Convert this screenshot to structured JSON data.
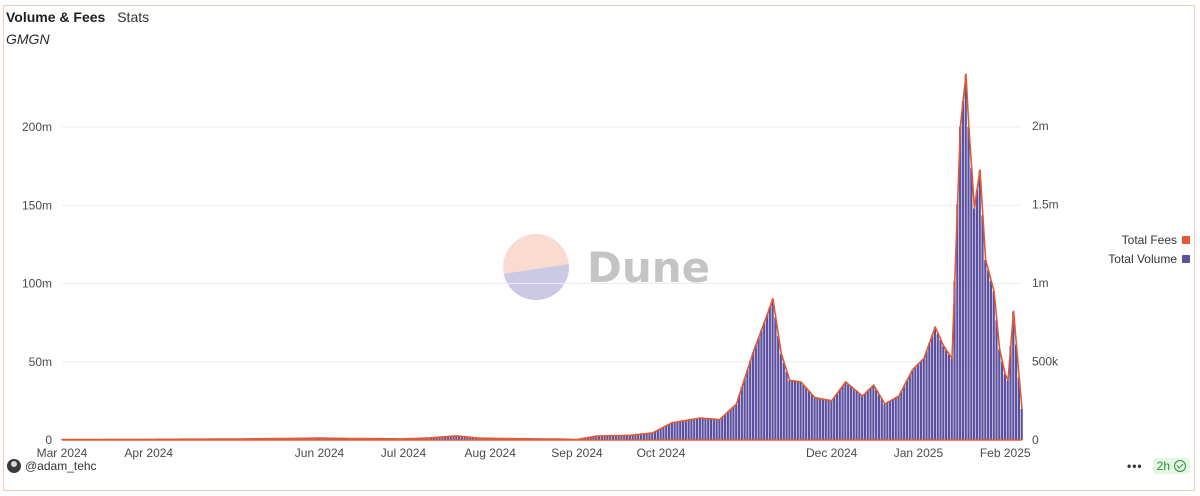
{
  "header": {
    "title": "Volume & Fees",
    "tab": "Stats",
    "subtitle": "GMGN"
  },
  "watermark": {
    "text": "Dune"
  },
  "legend": [
    {
      "label": "Total Fees",
      "color": "#e05a33"
    },
    {
      "label": "Total Volume",
      "color": "#5b4fa0"
    }
  ],
  "footer": {
    "author": "@adam_tehc",
    "menu": "•••",
    "refresh": "2h"
  },
  "chart_data": {
    "type": "bar",
    "start_date": "2024-03-01",
    "end_date": "2025-02-07",
    "x_ticks": [
      "Mar 2024",
      "Apr 2024",
      "Jun 2024",
      "Jul 2024",
      "Aug 2024",
      "Sep 2024",
      "Oct 2024",
      "Dec 2024",
      "Jan 2025",
      "Feb 2025"
    ],
    "y_left": {
      "ticks": [
        "0",
        "50m",
        "100m",
        "150m",
        "200m"
      ],
      "max": 200
    },
    "y_right": {
      "ticks": [
        "0",
        "500k",
        "1m",
        "1.5m",
        "2m"
      ],
      "max": 2
    },
    "series": [
      {
        "name": "Total Volume",
        "axis": "left",
        "unit": "m",
        "color": "#5b4fa0",
        "anchors": [
          [
            "2024-03-01",
            0.3
          ],
          [
            "2024-04-01",
            0.4
          ],
          [
            "2024-05-01",
            0.6
          ],
          [
            "2024-06-01",
            1.2
          ],
          [
            "2024-06-15",
            0.9
          ],
          [
            "2024-07-01",
            0.7
          ],
          [
            "2024-07-10",
            1.3
          ],
          [
            "2024-07-20",
            2.6
          ],
          [
            "2024-07-28",
            1.2
          ],
          [
            "2024-08-10",
            0.8
          ],
          [
            "2024-08-25",
            0.6
          ],
          [
            "2024-09-01",
            0.3
          ],
          [
            "2024-09-08",
            2.5
          ],
          [
            "2024-09-20",
            3.0
          ],
          [
            "2024-09-28",
            4.5
          ],
          [
            "2024-10-05",
            11
          ],
          [
            "2024-10-15",
            14
          ],
          [
            "2024-10-22",
            13
          ],
          [
            "2024-10-28",
            23
          ],
          [
            "2024-11-03",
            56
          ],
          [
            "2024-11-08",
            80
          ],
          [
            "2024-11-10",
            90
          ],
          [
            "2024-11-13",
            55
          ],
          [
            "2024-11-16",
            38
          ],
          [
            "2024-11-20",
            37
          ],
          [
            "2024-11-25",
            27
          ],
          [
            "2024-12-01",
            25
          ],
          [
            "2024-12-06",
            37
          ],
          [
            "2024-12-12",
            28
          ],
          [
            "2024-12-16",
            35
          ],
          [
            "2024-12-20",
            23
          ],
          [
            "2024-12-25",
            28
          ],
          [
            "2024-12-30",
            45
          ],
          [
            "2025-01-03",
            52
          ],
          [
            "2025-01-07",
            72
          ],
          [
            "2025-01-10",
            60
          ],
          [
            "2025-01-13",
            52
          ],
          [
            "2025-01-16",
            200
          ],
          [
            "2025-01-18",
            233
          ],
          [
            "2025-01-19",
            200
          ],
          [
            "2025-01-21",
            148
          ],
          [
            "2025-01-23",
            172
          ],
          [
            "2025-01-25",
            115
          ],
          [
            "2025-01-28",
            95
          ],
          [
            "2025-01-30",
            58
          ],
          [
            "2025-02-01",
            42
          ],
          [
            "2025-02-02",
            38
          ],
          [
            "2025-02-04",
            82
          ],
          [
            "2025-02-06",
            40
          ],
          [
            "2025-02-07",
            20
          ]
        ]
      },
      {
        "name": "Total Fees",
        "axis": "right",
        "unit": "m",
        "color": "#e05a33",
        "anchors": [
          [
            "2024-03-01",
            0.003
          ],
          [
            "2024-04-01",
            0.004
          ],
          [
            "2024-05-01",
            0.006
          ],
          [
            "2024-06-01",
            0.012
          ],
          [
            "2024-06-15",
            0.009
          ],
          [
            "2024-07-01",
            0.007
          ],
          [
            "2024-07-10",
            0.013
          ],
          [
            "2024-07-20",
            0.026
          ],
          [
            "2024-07-28",
            0.012
          ],
          [
            "2024-08-10",
            0.008
          ],
          [
            "2024-08-25",
            0.006
          ],
          [
            "2024-09-01",
            0.003
          ],
          [
            "2024-09-08",
            0.025
          ],
          [
            "2024-09-20",
            0.03
          ],
          [
            "2024-09-28",
            0.045
          ],
          [
            "2024-10-05",
            0.11
          ],
          [
            "2024-10-15",
            0.14
          ],
          [
            "2024-10-22",
            0.13
          ],
          [
            "2024-10-28",
            0.23
          ],
          [
            "2024-11-03",
            0.56
          ],
          [
            "2024-11-08",
            0.8
          ],
          [
            "2024-11-10",
            0.9
          ],
          [
            "2024-11-13",
            0.55
          ],
          [
            "2024-11-16",
            0.38
          ],
          [
            "2024-11-20",
            0.37
          ],
          [
            "2024-11-25",
            0.27
          ],
          [
            "2024-12-01",
            0.25
          ],
          [
            "2024-12-06",
            0.37
          ],
          [
            "2024-12-12",
            0.28
          ],
          [
            "2024-12-16",
            0.35
          ],
          [
            "2024-12-20",
            0.23
          ],
          [
            "2024-12-25",
            0.28
          ],
          [
            "2024-12-30",
            0.45
          ],
          [
            "2025-01-03",
            0.52
          ],
          [
            "2025-01-07",
            0.72
          ],
          [
            "2025-01-10",
            0.6
          ],
          [
            "2025-01-13",
            0.52
          ],
          [
            "2025-01-16",
            2.0
          ],
          [
            "2025-01-18",
            2.33
          ],
          [
            "2025-01-19",
            2.0
          ],
          [
            "2025-01-21",
            1.48
          ],
          [
            "2025-01-23",
            1.72
          ],
          [
            "2025-01-25",
            1.15
          ],
          [
            "2025-01-28",
            0.95
          ],
          [
            "2025-01-30",
            0.58
          ],
          [
            "2025-02-01",
            0.42
          ],
          [
            "2025-02-02",
            0.38
          ],
          [
            "2025-02-04",
            0.82
          ],
          [
            "2025-02-06",
            0.4
          ],
          [
            "2025-02-07",
            0.2
          ]
        ]
      }
    ],
    "grid": true,
    "legend_position": "right"
  }
}
